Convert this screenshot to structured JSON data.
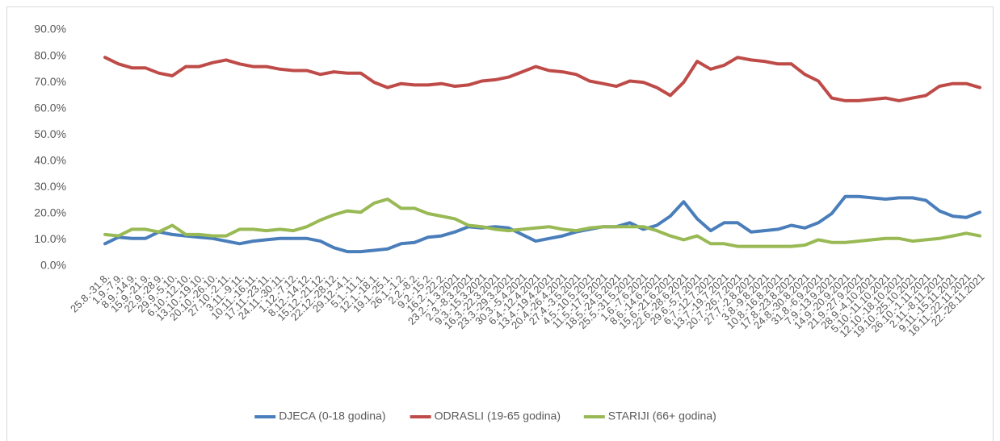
{
  "chart_data": {
    "type": "line",
    "categories": [
      "25.8.-31.8.",
      "1.9.-7.9.",
      "8.9.-14.9.",
      "15.9.-21.9.",
      "22.9.-28.9.",
      "29.9.-5.10.",
      "6.10.-12.10.",
      "13.10.-19.10.",
      "20.10.-26.10.",
      "27.10.-2.11.",
      "3.11.-9.11.",
      "10.11.-16.11.",
      "17.11.-23.11.",
      "24.11.-30.11.",
      "1.12.-7.12.",
      "8.12.-14.12.",
      "15.12.-21.12.",
      "22.12.-28.12.",
      "29.12.-4.1.",
      "5.1.-11.1.",
      "12.1.-18.1.",
      "19.1.-25.1.",
      "26.1.-1.2.",
      "2.2.-8.2.",
      "9.2.-15.2.",
      "16.2.-22.2.",
      "23.2.-1.3.2021",
      "2.3.-8.3.2021",
      "9.3.-15.3.2021",
      "16.3.-22.3.2021",
      "23.3.-29.3.2021",
      "30.3.-5.4.2021",
      "6.4.-12.4.2021",
      "13.4.-19.4.2021",
      "20.4.-26.4.2021",
      "27.4.-3.5.2021",
      "4.5.-10.5.2021",
      "11.5.-17.5.2021",
      "18.5.-24.5.2021",
      "25.5.-31.5.2021",
      "1.6.-7.6.2021",
      "8.6.-14.6.2021",
      "15.6.-21.6.2021",
      "22.6.-28.6.2021",
      "29.6.-5.7.2021",
      "6.7.-12.7.2021",
      "13.7.-19.7.2021",
      "20.7.-26.7.2021",
      "27.7.-2.8.2021",
      "3.8.-9.8.2021",
      "10.8.-16.8.2021",
      "17.8.-23.8.2021",
      "24.8.-30.8.2021",
      "31.8.-6.9.2021",
      "7.9.-13.9.2021",
      "14.9.-20.9.2021",
      "21.9.-27.9.2021",
      "28.9.-4.10.2021",
      "5.10.-11.10.2021",
      "12.10.-18.10.2021",
      "19.10.-25.10.2021",
      "26.10.-1.11.2021",
      "2.11.-8.11.2021",
      "9.11.-15.11.2021",
      "16.11.-22.11.2021",
      "22.-28.11.2021"
    ],
    "series": [
      {
        "name": "DJECA (0-18 godina)",
        "color": "#4a7ebb",
        "values": [
          8.5,
          11,
          10.5,
          10.5,
          13,
          12,
          11.5,
          11,
          10.5,
          9.5,
          8.5,
          9.5,
          10,
          10.5,
          10.5,
          10.5,
          9.5,
          7,
          5.5,
          5.5,
          6,
          6.5,
          8.5,
          9,
          11,
          11.5,
          13,
          15,
          14.5,
          15,
          14.5,
          12,
          9.5,
          10.5,
          11.5,
          13,
          14,
          15,
          15,
          16.5,
          14,
          15.5,
          19,
          24.5,
          18,
          13.5,
          16.5,
          16.5,
          13,
          13.5,
          14,
          15.5,
          14.5,
          16.5,
          20,
          26.5,
          26.5,
          26,
          25.5,
          26,
          26,
          25,
          21,
          19,
          18.5,
          20.5
        ]
      },
      {
        "name": "ODRASLI (19-65 godina)",
        "color": "#be4b48",
        "values": [
          79.5,
          77,
          75.5,
          75.5,
          73.5,
          72.5,
          76,
          76,
          77.5,
          78.5,
          77,
          76,
          76,
          75,
          74.5,
          74.5,
          73,
          74,
          73.5,
          73.5,
          70,
          68,
          69.5,
          69,
          69,
          69.5,
          68.5,
          69,
          70.5,
          71,
          72,
          74,
          76,
          74.5,
          74,
          73,
          70.5,
          69.5,
          68.5,
          70.5,
          70,
          68,
          65,
          70,
          78,
          75,
          76.5,
          79.5,
          78.5,
          78,
          77,
          77,
          73,
          70.5,
          64,
          63,
          63,
          63.5,
          64,
          63,
          64,
          65,
          68.5,
          69.5,
          69.5,
          68
        ]
      },
      {
        "name": "STARIJI (66+ godina)",
        "color": "#98b954",
        "values": [
          12,
          11.5,
          14,
          14,
          13,
          15.5,
          12,
          12,
          11.5,
          11.5,
          14,
          14,
          13.5,
          14,
          13.5,
          15,
          17.5,
          19.5,
          21,
          20.5,
          24,
          25.5,
          22,
          22,
          20,
          19,
          18,
          15.5,
          15,
          14,
          13.5,
          14,
          14.5,
          15,
          14,
          13.5,
          14.5,
          15,
          15,
          15,
          15,
          13.5,
          11.5,
          10,
          11.5,
          8.5,
          8.5,
          7.5,
          7.5,
          7.5,
          7.5,
          7.5,
          8,
          10,
          9,
          9,
          9.5,
          10,
          10.5,
          10.5,
          9.5,
          10,
          10.5,
          11.5,
          12.5,
          11.5
        ]
      }
    ],
    "ylim": [
      0,
      90
    ],
    "yticks": [
      {
        "value": 0,
        "label": "0.0%"
      },
      {
        "value": 10,
        "label": "10.0%"
      },
      {
        "value": 20,
        "label": "20.0%"
      },
      {
        "value": 30,
        "label": "30.0%"
      },
      {
        "value": 40,
        "label": "40.0%"
      },
      {
        "value": 50,
        "label": "50.0%"
      },
      {
        "value": 60,
        "label": "60.0%"
      },
      {
        "value": 70,
        "label": "70.0%"
      },
      {
        "value": 80,
        "label": "80.0%"
      },
      {
        "value": 90,
        "label": "90.0%"
      }
    ],
    "grid": false,
    "legend": "bottom"
  }
}
